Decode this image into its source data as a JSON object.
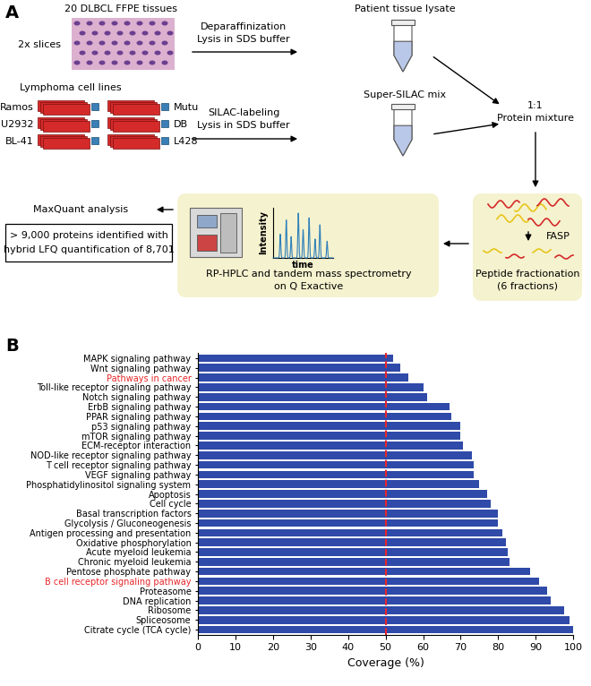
{
  "diagram": {
    "panel_label": "A",
    "tissue": {
      "title": "20 DLBCL FFPE tissues",
      "note": "2x slices"
    },
    "cell_lines": {
      "title": "Lymphoma cell lines",
      "names_left": [
        "Ramos",
        "U2932",
        "BL-41"
      ],
      "names_right": [
        "Mutu",
        "DB",
        "L428"
      ]
    },
    "step_tissue": [
      "Deparaffinization",
      "Lysis in SDS buffer"
    ],
    "step_cells": [
      "SILAC-labeling",
      "Lysis in SDS buffer"
    ],
    "tissue_lysate": "Patient tissue lysate",
    "super_silac": "Super-SILAC mix",
    "mixture": [
      "1:1",
      "Protein mixture"
    ],
    "digestion": "FASP",
    "fractionation": [
      "Peptide fractionation",
      "(6 fractions)"
    ],
    "ms": [
      "RP-HPLC and tandem mass spectrometry",
      "on Q Exactive"
    ],
    "chromatogram": {
      "y_label": "Intensity",
      "x_label": "time"
    },
    "analysis": "MaxQuant analysis",
    "result": [
      "> 9,000 proteins identified with",
      "hybrid LFQ quantification of 8,701"
    ]
  },
  "chart_data": {
    "panel_label": "B",
    "type": "bar",
    "orientation": "horizontal",
    "categories": [
      "MAPK signaling pathway",
      "Wnt signaling pathway",
      "Pathways in cancer",
      "Toll-like receptor signaling pathway",
      "Notch signaling pathway",
      "ErbB signaling pathway",
      "PPAR signaling pathway",
      "p53 signaling pathway",
      "mTOR signaling pathway",
      "ECM-receptor interaction",
      "NOD-like receptor signaling pathway",
      "T cell receptor signaling pathway",
      "VEGF signaling pathway",
      "Phosphatidylinositol signaling system",
      "Apoptosis",
      "Cell cycle",
      "Basal transcription factors",
      "Glycolysis / Gluconeogenesis",
      "Antigen processing and presentation",
      "Oxidative phosphorylation",
      "Acute myeloid leukemia",
      "Chronic myeloid leukemia",
      "Pentose phosphate pathway",
      "B cell receptor signaling pathway",
      "Proteasome",
      "DNA replication",
      "Ribosome",
      "Spliceosome",
      "Citrate cycle (TCA cycle)"
    ],
    "values": [
      52,
      54,
      56,
      60,
      61,
      67,
      67.5,
      70,
      70,
      70.5,
      73,
      73.5,
      73.5,
      75,
      77,
      78,
      80,
      80,
      81,
      82,
      82.5,
      83,
      88.5,
      91,
      93,
      94,
      97.5,
      99,
      100
    ],
    "color": "#2f4aa8",
    "label_colors": [
      "#000000",
      "#000000",
      "#e8262a",
      "#000000",
      "#000000",
      "#000000",
      "#000000",
      "#000000",
      "#000000",
      "#000000",
      "#000000",
      "#000000",
      "#000000",
      "#000000",
      "#000000",
      "#000000",
      "#000000",
      "#000000",
      "#000000",
      "#000000",
      "#000000",
      "#000000",
      "#000000",
      "#e8262a",
      "#000000",
      "#000000",
      "#000000",
      "#000000",
      "#000000"
    ],
    "reference_line": {
      "value": 50,
      "color": "#e8262a"
    },
    "xlabel": "Coverage (%)",
    "xlim": [
      0,
      100
    ],
    "xticks": [
      0,
      10,
      20,
      30,
      40,
      50,
      60,
      70,
      80,
      90,
      100
    ]
  }
}
